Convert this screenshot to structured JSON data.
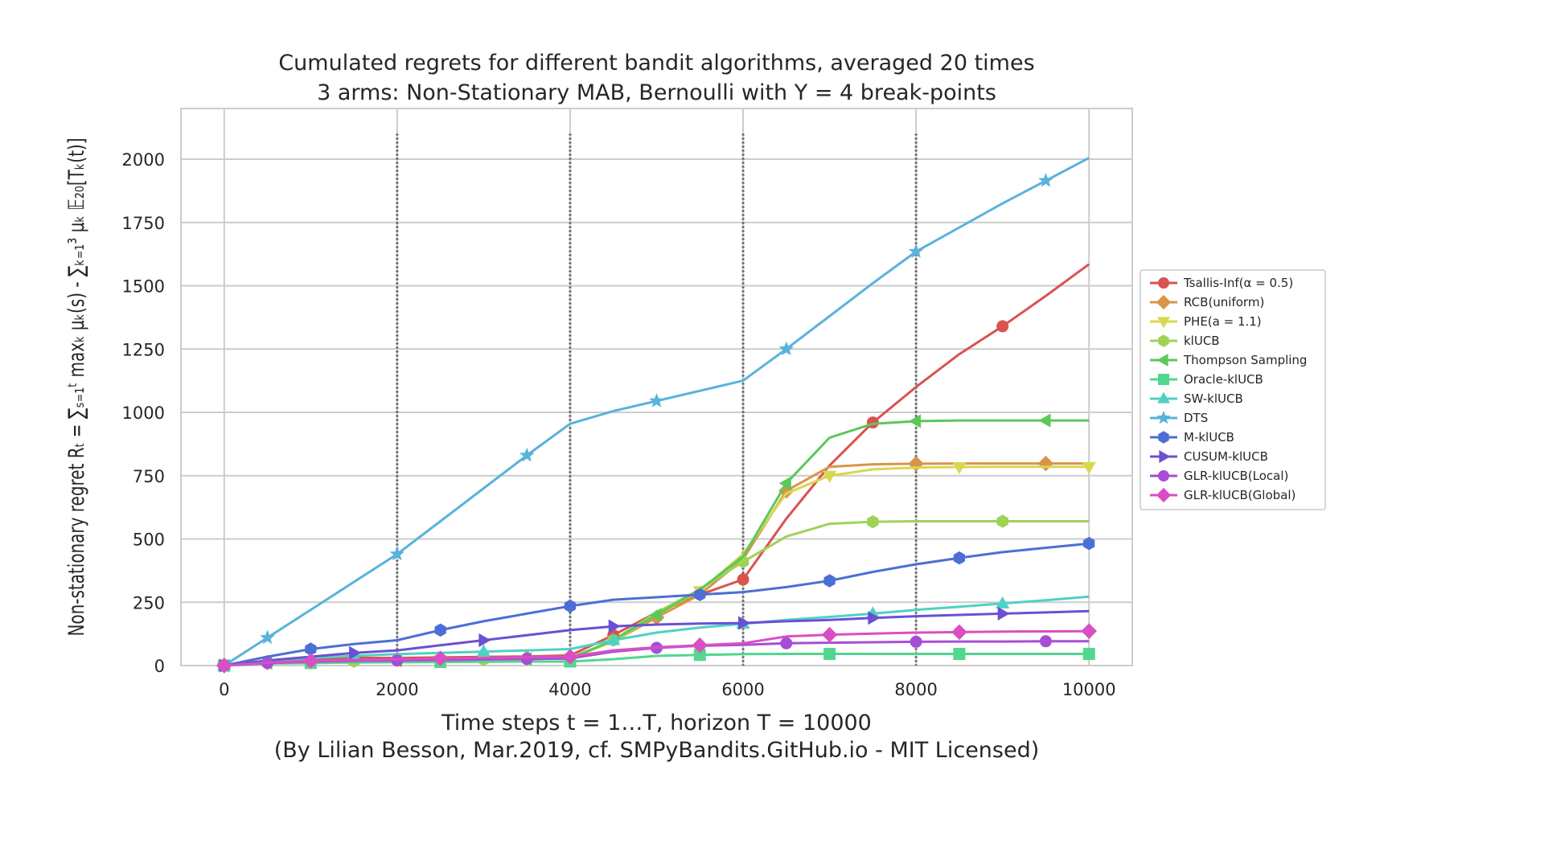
{
  "chart_data": {
    "type": "line",
    "title": "Cumulated regrets for different bandit algorithms, averaged 20 times",
    "subtitle": "3 arms: Non-Stationary MAB, Bernoulli with Υ = 4 break-points",
    "xlabel": "Time steps t = 1…T, horizon T = 10000",
    "xlabel_credit": "(By Lilian Besson, Mar.2019, cf. SMPyBandits.GitHub.io - MIT Licensed)",
    "ylabel": "Non-stationary regret Rₜ = ∑ₛ₌₁ᵗ maxₖ μₖ(s) - ∑ₖ₌₁³ μₖ 𝔼₂₀[Tₖ(t)]",
    "xlim": [
      -500,
      10500
    ],
    "ylim": [
      0,
      2200
    ],
    "xticks": [
      "0",
      "2000",
      "4000",
      "6000",
      "8000",
      "10000"
    ],
    "yticks": [
      "0",
      "250",
      "500",
      "750",
      "1000",
      "1250",
      "1500",
      "1750",
      "2000"
    ],
    "grid": true,
    "legend_position": "right, outside plot",
    "break_points": [
      2000,
      4000,
      6000,
      8000
    ],
    "x": [
      0,
      500,
      1000,
      1500,
      2000,
      2500,
      3000,
      3500,
      4000,
      4500,
      5000,
      5500,
      6000,
      6500,
      7000,
      7500,
      8000,
      8500,
      9000,
      9500,
      10000
    ],
    "series": [
      {
        "name": "Tsallis-Inf(α = 0.5)",
        "color": "#d9534f",
        "marker": "circle",
        "values": [
          0,
          15,
          25,
          30,
          30,
          32,
          34,
          36,
          40,
          120,
          210,
          280,
          340,
          580,
          790,
          960,
          1100,
          1230,
          1340,
          1460,
          1585
        ]
      },
      {
        "name": "RCB(uniform)",
        "color": "#d9944a",
        "marker": "diamond",
        "values": [
          0,
          12,
          18,
          22,
          25,
          27,
          28,
          30,
          32,
          95,
          190,
          280,
          420,
          690,
          785,
          795,
          797,
          798,
          798,
          798,
          798
        ]
      },
      {
        "name": "PHE(a = 1.1)",
        "color": "#d7d84e",
        "marker": "triangle-down",
        "values": [
          0,
          10,
          14,
          17,
          20,
          22,
          24,
          26,
          28,
          95,
          200,
          295,
          440,
          680,
          750,
          775,
          782,
          784,
          785,
          785,
          785
        ]
      },
      {
        "name": "klUCB",
        "color": "#9fd356",
        "marker": "hexagon",
        "values": [
          0,
          10,
          14,
          17,
          20,
          22,
          24,
          26,
          28,
          100,
          210,
          300,
          410,
          510,
          560,
          568,
          570,
          570,
          570,
          570,
          570
        ]
      },
      {
        "name": "Thompson Sampling",
        "color": "#5cc85a",
        "marker": "triangle-left",
        "values": [
          0,
          10,
          14,
          17,
          20,
          22,
          24,
          26,
          28,
          100,
          200,
          300,
          430,
          720,
          900,
          955,
          965,
          968,
          968,
          968,
          968
        ]
      },
      {
        "name": "Oracle-klUCB",
        "color": "#53d68f",
        "marker": "square",
        "values": [
          0,
          8,
          10,
          12,
          13,
          14,
          15,
          16,
          16,
          25,
          38,
          42,
          45,
          46,
          46,
          46,
          46,
          46,
          46,
          46,
          46
        ]
      },
      {
        "name": "SW-klUCB",
        "color": "#4fd1c4",
        "marker": "triangle-up",
        "values": [
          0,
          20,
          30,
          38,
          45,
          50,
          55,
          60,
          65,
          100,
          130,
          150,
          165,
          180,
          192,
          205,
          220,
          232,
          245,
          258,
          272
        ]
      },
      {
        "name": "DTS",
        "color": "#58b2dc",
        "marker": "star",
        "values": [
          0,
          110,
          220,
          330,
          440,
          570,
          700,
          830,
          955,
          1005,
          1045,
          1085,
          1125,
          1250,
          1380,
          1510,
          1635,
          1730,
          1825,
          1915,
          2005
        ]
      },
      {
        "name": "M-klUCB",
        "color": "#4b6fd6",
        "marker": "hexagon",
        "values": [
          0,
          35,
          65,
          85,
          100,
          140,
          175,
          205,
          235,
          260,
          270,
          280,
          290,
          310,
          335,
          370,
          400,
          425,
          448,
          465,
          482
        ]
      },
      {
        "name": "CUSUM-klUCB",
        "color": "#6b50d2",
        "marker": "triangle-right",
        "values": [
          0,
          20,
          35,
          50,
          60,
          80,
          100,
          120,
          140,
          155,
          162,
          166,
          168,
          175,
          180,
          188,
          195,
          200,
          205,
          210,
          215
        ]
      },
      {
        "name": "GLR-klUCB(Local)",
        "color": "#a64ed6",
        "marker": "circle",
        "values": [
          0,
          10,
          15,
          18,
          20,
          22,
          24,
          26,
          28,
          55,
          70,
          78,
          82,
          88,
          90,
          92,
          94,
          95,
          95,
          96,
          96
        ]
      },
      {
        "name": "GLR-klUCB(Global)",
        "color": "#d94fc3",
        "marker": "diamond",
        "values": [
          0,
          12,
          18,
          22,
          25,
          28,
          30,
          33,
          35,
          60,
          72,
          80,
          88,
          115,
          122,
          126,
          130,
          132,
          134,
          135,
          136
        ]
      }
    ]
  }
}
